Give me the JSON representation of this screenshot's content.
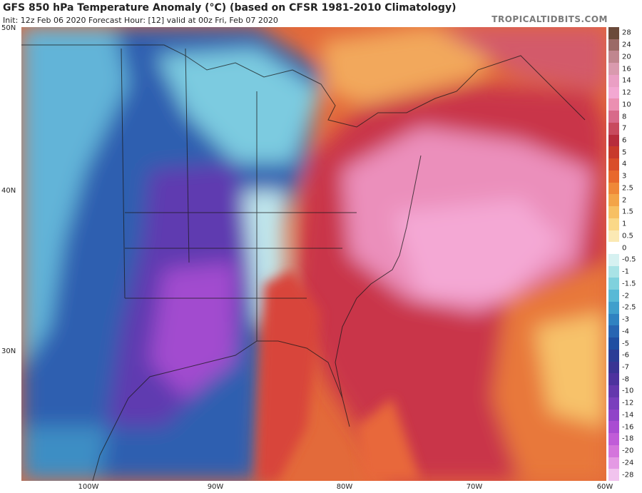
{
  "header": {
    "title": "GFS 850 hPa Temperature Anomaly (°C) (based on CFSR 1981-2010 Climatology)",
    "subtitle": "Init: 12z Feb 06 2020   Forecast Hour: [12]   valid at 00z Fri, Feb 07 2020",
    "brand": "TROPICALTIDBITS.COM"
  },
  "axes": {
    "lat_labels": [
      "50N",
      "40N",
      "30N"
    ],
    "lon_labels": [
      "100W",
      "90W",
      "80W",
      "70W",
      "60W"
    ]
  },
  "colorbar": {
    "labels": [
      "28",
      "24",
      "20",
      "16",
      "14",
      "12",
      "10",
      "8",
      "7",
      "6",
      "5",
      "4",
      "3",
      "2.5",
      "2",
      "1.5",
      "1",
      "0.5",
      "0",
      "-0.5",
      "-1",
      "-1.5",
      "-2",
      "-2.5",
      "-3",
      "-4",
      "-5",
      "-6",
      "-7",
      "-8",
      "-10",
      "-12",
      "-14",
      "-16",
      "-18",
      "-20",
      "-24",
      "-28"
    ],
    "colors": [
      "#6b4a3a",
      "#9b6a66",
      "#c0868f",
      "#d99aae",
      "#ea9fc4",
      "#f3a8d2",
      "#eb8fb1",
      "#d86a8a",
      "#c84a5e",
      "#b72c3c",
      "#c83a2c",
      "#d94e2a",
      "#e8682c",
      "#ef8838",
      "#f3a448",
      "#f7c063",
      "#fad888",
      "#fbe9b4",
      "#ffffff",
      "#d6f1f1",
      "#a9e3e6",
      "#7fd1dd",
      "#58b9d6",
      "#409fcc",
      "#2f82c1",
      "#2765b2",
      "#1f4ea2",
      "#2a3d96",
      "#3a3494",
      "#4d329e",
      "#6437ad",
      "#7a3fbd",
      "#9044c8",
      "#a94cd2",
      "#c05cd8",
      "#d475dc",
      "#e49ae4",
      "#f1c3ee"
    ]
  }
}
